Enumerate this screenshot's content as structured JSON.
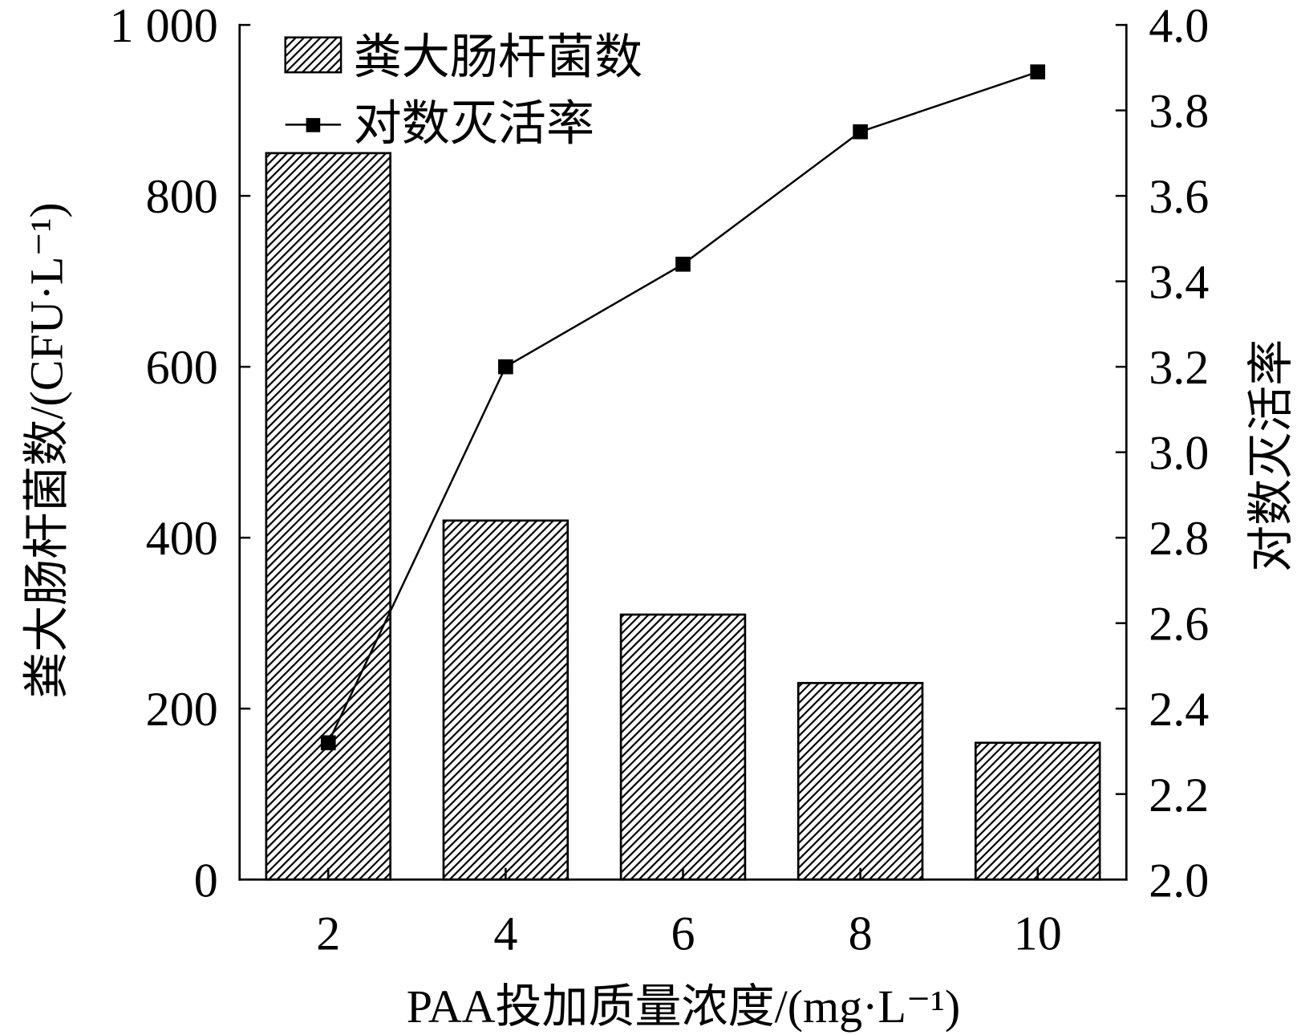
{
  "chart_data": {
    "type": "bar",
    "categories": [
      "2",
      "4",
      "6",
      "8",
      "10"
    ],
    "series": [
      {
        "name": "粪大肠杆菌数",
        "type": "bar",
        "axis": "left",
        "pattern": "diagonal-hatch",
        "values": [
          850,
          420,
          310,
          230,
          160
        ]
      },
      {
        "name": "对数灭活率",
        "type": "line",
        "axis": "right",
        "marker": "square",
        "values": [
          2.32,
          3.2,
          3.44,
          3.75,
          3.89
        ]
      }
    ],
    "xlabel": "PAA投加质量浓度/(mg·L⁻¹)",
    "ylabel": "粪大肠杆菌数/(CFU·L⁻¹)",
    "y2label": "对数灭活率",
    "ylim": [
      0,
      1000
    ],
    "y2lim": [
      2.0,
      4.0
    ],
    "yticks": [
      0,
      200,
      400,
      600,
      800,
      1000
    ],
    "ytick_labels": [
      "0",
      "200",
      "400",
      "600",
      "800",
      "1 000"
    ],
    "y2ticks": [
      2.0,
      2.2,
      2.4,
      2.6,
      2.8,
      3.0,
      3.2,
      3.4,
      3.6,
      3.8,
      4.0
    ],
    "y2tick_labels": [
      "2.0",
      "2.2",
      "2.4",
      "2.6",
      "2.8",
      "3.0",
      "3.2",
      "3.4",
      "3.6",
      "3.8",
      "4.0"
    ],
    "legend": "top-left",
    "grid": false,
    "colors": {
      "ink": "#000000",
      "bar_fill": "#ffffff",
      "background": "#ffffff"
    }
  }
}
